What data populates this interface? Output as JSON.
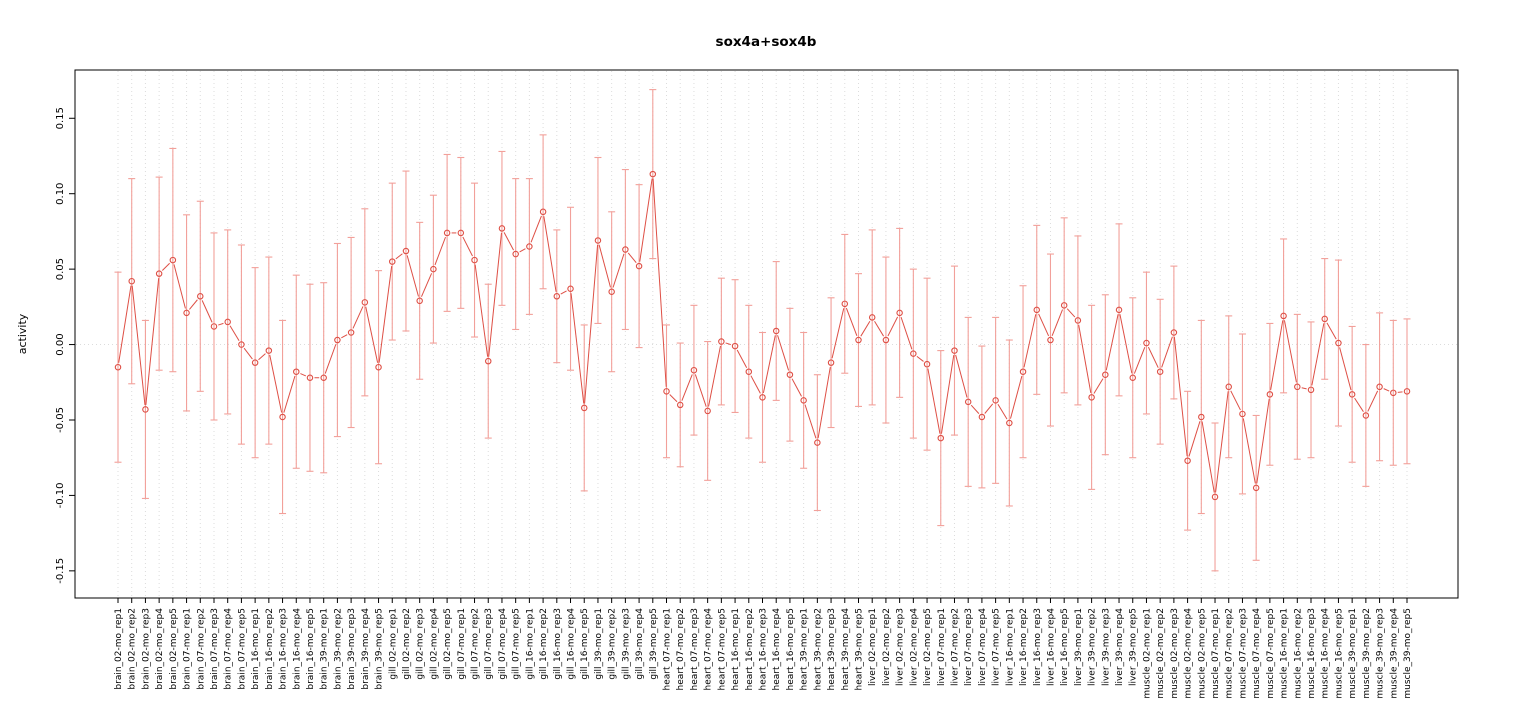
{
  "chart_data": {
    "type": "line",
    "title": "sox4a+sox4b",
    "xlabel": "",
    "ylabel": "activity",
    "ylim": [
      -0.168,
      0.182
    ],
    "ytick_labels": [
      "-0.15",
      "-0.10",
      "-0.05",
      "0.00",
      "0.05",
      "0.10",
      "0.15"
    ],
    "grid": "vertical dotted gridline per category plus dotted horizontal line at 0",
    "legend_position": "none",
    "marker": "open-circle",
    "line_style": "type-b-segments-with-gaps",
    "error_bars": "mean plus-minus error with caps",
    "colors": {
      "series": "#de4f45",
      "error_bars": "#f2a09a",
      "grid": "#dcdcdc",
      "axis": "#000000",
      "background": "#ffffff"
    },
    "categories": [
      "brain_02-mo_rep1",
      "brain_02-mo_rep2",
      "brain_02-mo_rep3",
      "brain_02-mo_rep4",
      "brain_02-mo_rep5",
      "brain_07-mo_rep1",
      "brain_07-mo_rep2",
      "brain_07-mo_rep3",
      "brain_07-mo_rep4",
      "brain_07-mo_rep5",
      "brain_16-mo_rep1",
      "brain_16-mo_rep2",
      "brain_16-mo_rep3",
      "brain_16-mo_rep4",
      "brain_16-mo_rep5",
      "brain_39-mo_rep1",
      "brain_39-mo_rep2",
      "brain_39-mo_rep3",
      "brain_39-mo_rep4",
      "brain_39-mo_rep5",
      "gill_02-mo_rep1",
      "gill_02-mo_rep2",
      "gill_02-mo_rep3",
      "gill_02-mo_rep4",
      "gill_02-mo_rep5",
      "gill_07-mo_rep1",
      "gill_07-mo_rep2",
      "gill_07-mo_rep3",
      "gill_07-mo_rep4",
      "gill_07-mo_rep5",
      "gill_16-mo_rep1",
      "gill_16-mo_rep2",
      "gill_16-mo_rep3",
      "gill_16-mo_rep4",
      "gill_16-mo_rep5",
      "gill_39-mo_rep1",
      "gill_39-mo_rep2",
      "gill_39-mo_rep3",
      "gill_39-mo_rep4",
      "gill_39-mo_rep5",
      "heart_07-mo_rep1",
      "heart_07-mo_rep2",
      "heart_07-mo_rep3",
      "heart_07-mo_rep4",
      "heart_07-mo_rep5",
      "heart_16-mo_rep1",
      "heart_16-mo_rep2",
      "heart_16-mo_rep3",
      "heart_16-mo_rep4",
      "heart_16-mo_rep5",
      "heart_39-mo_rep1",
      "heart_39-mo_rep2",
      "heart_39-mo_rep3",
      "heart_39-mo_rep4",
      "heart_39-mo_rep5",
      "liver_02-mo_rep1",
      "liver_02-mo_rep2",
      "liver_02-mo_rep3",
      "liver_02-mo_rep4",
      "liver_02-mo_rep5",
      "liver_07-mo_rep1",
      "liver_07-mo_rep2",
      "liver_07-mo_rep3",
      "liver_07-mo_rep4",
      "liver_07-mo_rep5",
      "liver_16-mo_rep1",
      "liver_16-mo_rep2",
      "liver_16-mo_rep3",
      "liver_16-mo_rep4",
      "liver_16-mo_rep5",
      "liver_39-mo_rep1",
      "liver_39-mo_rep2",
      "liver_39-mo_rep3",
      "liver_39-mo_rep4",
      "liver_39-mo_rep5",
      "muscle_02-mo_rep1",
      "muscle_02-mo_rep2",
      "muscle_02-mo_rep3",
      "muscle_02-mo_rep4",
      "muscle_02-mo_rep5",
      "muscle_07-mo_rep1",
      "muscle_07-mo_rep2",
      "muscle_07-mo_rep3",
      "muscle_07-mo_rep4",
      "muscle_07-mo_rep5",
      "muscle_16-mo_rep1",
      "muscle_16-mo_rep2",
      "muscle_16-mo_rep3",
      "muscle_16-mo_rep4",
      "muscle_16-mo_rep5",
      "muscle_39-mo_rep1",
      "muscle_39-mo_rep2",
      "muscle_39-mo_rep3",
      "muscle_39-mo_rep4",
      "muscle_39-mo_rep5"
    ],
    "means": [
      -0.015,
      0.042,
      -0.043,
      0.047,
      0.056,
      0.021,
      0.032,
      0.012,
      0.015,
      0.0,
      -0.012,
      -0.004,
      -0.048,
      -0.018,
      -0.022,
      -0.022,
      0.003,
      0.008,
      0.028,
      -0.015,
      0.055,
      0.062,
      0.029,
      0.05,
      0.074,
      0.074,
      0.056,
      -0.011,
      0.077,
      0.06,
      0.065,
      0.088,
      0.032,
      0.037,
      -0.042,
      0.069,
      0.035,
      0.063,
      0.052,
      0.113,
      -0.031,
      -0.04,
      -0.017,
      -0.044,
      0.002,
      -0.001,
      -0.018,
      -0.035,
      0.009,
      -0.02,
      -0.037,
      -0.065,
      -0.012,
      0.027,
      0.003,
      0.018,
      0.003,
      0.021,
      -0.006,
      -0.013,
      -0.062,
      -0.004,
      -0.038,
      -0.048,
      -0.037,
      -0.052,
      -0.018,
      0.023,
      0.003,
      0.026,
      0.016,
      -0.035,
      -0.02,
      0.023,
      -0.022,
      0.001,
      -0.018,
      0.008,
      -0.077,
      -0.048,
      -0.101,
      -0.028,
      -0.046,
      -0.095,
      -0.033,
      0.019,
      -0.028,
      -0.03,
      0.017,
      0.001,
      -0.033,
      -0.047,
      -0.028,
      -0.032,
      -0.031
    ],
    "errors": [
      0.063,
      0.068,
      0.059,
      0.064,
      0.074,
      0.065,
      0.063,
      0.062,
      0.061,
      0.066,
      0.063,
      0.062,
      0.064,
      0.064,
      0.062,
      0.063,
      0.064,
      0.063,
      0.062,
      0.064,
      0.052,
      0.053,
      0.052,
      0.049,
      0.052,
      0.05,
      0.051,
      0.051,
      0.051,
      0.05,
      0.045,
      0.051,
      0.044,
      0.054,
      0.055,
      0.055,
      0.053,
      0.053,
      0.054,
      0.056,
      0.044,
      0.041,
      0.043,
      0.046,
      0.042,
      0.044,
      0.044,
      0.043,
      0.046,
      0.044,
      0.045,
      0.045,
      0.043,
      0.046,
      0.044,
      0.058,
      0.055,
      0.056,
      0.056,
      0.057,
      0.058,
      0.056,
      0.056,
      0.047,
      0.055,
      0.055,
      0.057,
      0.056,
      0.057,
      0.058,
      0.056,
      0.061,
      0.053,
      0.057,
      0.053,
      0.047,
      0.048,
      0.044,
      0.046,
      0.064,
      0.049,
      0.047,
      0.053,
      0.048,
      0.047,
      0.051,
      0.048,
      0.045,
      0.04,
      0.055,
      0.045,
      0.047,
      0.049,
      0.048,
      0.048
    ]
  }
}
